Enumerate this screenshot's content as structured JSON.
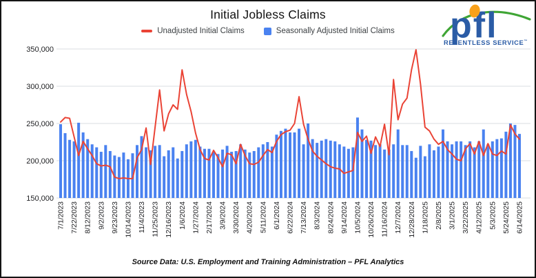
{
  "window": {
    "background": "#ffffff",
    "border_color": "#141414"
  },
  "header": {
    "title": "Initial Jobless Claims"
  },
  "legend": {
    "items": [
      {
        "label": "Unadjusted Initial Claims",
        "swatch": "line",
        "color": "#EA4335"
      },
      {
        "label": "Seasonally Adjusted Initial Claims",
        "swatch": "square",
        "color": "#4A82F0"
      }
    ]
  },
  "logo": {
    "wordmark": "pfl",
    "tagline": "RELENTLESS SERVICE",
    "trademark": "™",
    "colors": {
      "blue": "#2B5CA6",
      "orange": "#F9A11B",
      "green": "#3FA535"
    }
  },
  "footer": {
    "source_line": "Source Data: U.S. Employment and Training Administration – PFL Analytics"
  },
  "chart_data": {
    "type": "bar",
    "title": "Initial Jobless Claims",
    "xlabel": "",
    "ylabel": "",
    "ylim": [
      150000,
      350000
    ],
    "y_ticks": [
      150000,
      200000,
      250000,
      300000,
      350000
    ],
    "grid": true,
    "legend_position": "top",
    "x_tick_every": 3,
    "x": [
      "7/1/2023",
      "7/8/2023",
      "7/15/2023",
      "7/22/2023",
      "7/29/2023",
      "8/5/2023",
      "8/12/2023",
      "8/19/2023",
      "8/26/2023",
      "9/2/2023",
      "9/9/2023",
      "9/16/2023",
      "9/23/2023",
      "9/30/2023",
      "10/7/2023",
      "10/14/2023",
      "10/21/2023",
      "10/28/2023",
      "11/4/2023",
      "11/11/2023",
      "11/18/2023",
      "11/25/2023",
      "12/2/2023",
      "12/9/2023",
      "12/16/2023",
      "12/23/2023",
      "12/30/2023",
      "1/6/2024",
      "1/13/2024",
      "1/20/2024",
      "1/27/2024",
      "2/3/2024",
      "2/10/2024",
      "2/17/2024",
      "2/24/2024",
      "3/2/2024",
      "3/9/2024",
      "3/16/2024",
      "3/23/2024",
      "3/30/2024",
      "4/6/2024",
      "4/13/2024",
      "4/20/2024",
      "4/27/2024",
      "5/4/2024",
      "5/11/2024",
      "5/18/2024",
      "5/25/2024",
      "6/1/2024",
      "6/8/2024",
      "6/15/2024",
      "6/22/2024",
      "6/29/2024",
      "7/6/2024",
      "7/13/2024",
      "7/20/2024",
      "7/27/2024",
      "8/3/2024",
      "8/10/2024",
      "8/17/2024",
      "8/24/2024",
      "8/31/2024",
      "9/7/2024",
      "9/14/2024",
      "9/21/2024",
      "9/28/2024",
      "10/5/2024",
      "10/12/2024",
      "10/19/2024",
      "10/26/2024",
      "11/2/2024",
      "11/9/2024",
      "11/16/2024",
      "11/23/2024",
      "11/30/2024",
      "12/7/2024",
      "12/14/2024",
      "12/21/2024",
      "12/28/2024",
      "1/4/2025",
      "1/11/2025",
      "1/18/2025",
      "1/25/2025",
      "2/1/2025",
      "2/8/2025",
      "2/15/2025",
      "2/22/2025",
      "3/1/2025",
      "3/8/2025",
      "3/15/2025",
      "3/22/2025",
      "3/29/2025",
      "4/5/2025",
      "4/12/2025",
      "4/19/2025",
      "4/26/2025",
      "5/3/2025",
      "5/10/2025",
      "5/17/2025",
      "5/24/2025",
      "5/31/2025",
      "6/7/2025",
      "6/14/2025"
    ],
    "series": [
      {
        "name": "Unadjusted Initial Claims",
        "type": "line",
        "color": "#EA4335",
        "values": [
          252000,
          258000,
          257000,
          232000,
          207000,
          226000,
          216000,
          207000,
          196000,
          193000,
          194000,
          192000,
          178000,
          176000,
          177000,
          176000,
          176000,
          204000,
          215000,
          244000,
          195000,
          245000,
          295000,
          240000,
          263000,
          275000,
          269000,
          322000,
          289000,
          266000,
          237000,
          215000,
          203000,
          201000,
          214000,
          204000,
          192000,
          210000,
          208000,
          196000,
          222000,
          207000,
          196000,
          195000,
          198000,
          207000,
          215000,
          211000,
          226000,
          235000,
          239000,
          241000,
          250000,
          286000,
          249000,
          229000,
          213000,
          206000,
          201000,
          196000,
          192000,
          190000,
          189000,
          183000,
          185000,
          187000,
          238000,
          226000,
          233000,
          210000,
          232000,
          219000,
          249000,
          208000,
          309000,
          255000,
          276000,
          284000,
          322000,
          349000,
          303000,
          245000,
          240000,
          229000,
          222000,
          226000,
          215000,
          209000,
          202000,
          200000,
          216000,
          223000,
          209000,
          226000,
          207000,
          223000,
          209000,
          207000,
          213000,
          209000,
          248000,
          236000,
          229000
        ]
      },
      {
        "name": "Seasonally Adjusted Initial Claims",
        "type": "bar",
        "color": "#4A82F0",
        "values": [
          249000,
          237000,
          228000,
          226000,
          251000,
          238000,
          229000,
          222000,
          218000,
          212000,
          221000,
          213000,
          207000,
          205000,
          211000,
          202000,
          210000,
          221000,
          233000,
          218000,
          214000,
          220000,
          221000,
          206000,
          214000,
          218000,
          203000,
          213000,
          222000,
          226000,
          228000,
          219000,
          216000,
          216000,
          212000,
          209000,
          215000,
          220000,
          212000,
          213000,
          222000,
          215000,
          211000,
          213000,
          218000,
          222000,
          225000,
          219000,
          235000,
          240000,
          243000,
          238000,
          238000,
          243000,
          222000,
          250000,
          229000,
          224000,
          227000,
          229000,
          227000,
          226000,
          222000,
          219000,
          216000,
          218000,
          258000,
          242000,
          228000,
          227000,
          221000,
          222000,
          215000,
          215000,
          222000,
          242000,
          221000,
          221000,
          213000,
          204000,
          220000,
          206000,
          222000,
          214000,
          219000,
          242000,
          226000,
          222000,
          226000,
          226000,
          221000,
          226000,
          218000,
          226000,
          242000,
          222000,
          226000,
          229000,
          230000,
          239000,
          250000,
          248000,
          236000
        ]
      }
    ]
  }
}
